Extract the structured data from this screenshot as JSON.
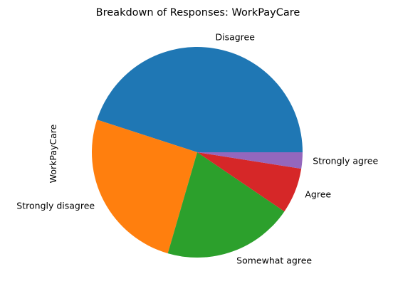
{
  "chart_data": {
    "type": "pie",
    "title": "Breakdown of Responses: WorkPayCare",
    "ylabel": "WorkPayCare",
    "start_angle_deg": 0,
    "direction": "counterclockwise",
    "legend": "none",
    "slices": [
      {
        "label": "Disagree",
        "value": 45.0,
        "color": "#1f77b4"
      },
      {
        "label": "Strongly disagree",
        "value": 25.5,
        "color": "#ff7f0e"
      },
      {
        "label": "Somewhat agree",
        "value": 20.0,
        "color": "#2ca02c"
      },
      {
        "label": "Agree",
        "value": 7.0,
        "color": "#d62728"
      },
      {
        "label": "Strongly agree",
        "value": 2.5,
        "color": "#9467bd"
      }
    ]
  }
}
